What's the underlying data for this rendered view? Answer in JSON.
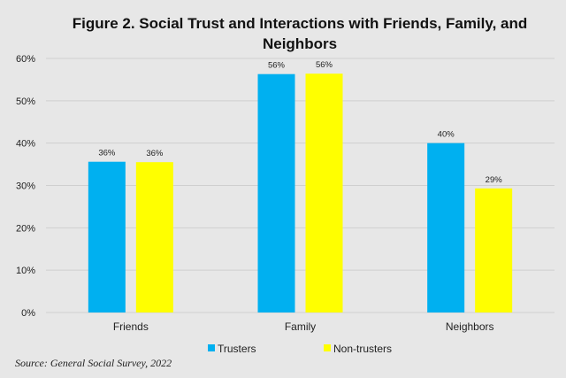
{
  "chart_data": {
    "type": "bar",
    "title_line1": "Figure 2. Social Trust and Interactions with Friends, Family, and",
    "title_line2": "Neighbors",
    "categories": [
      "Friends",
      "Family",
      "Neighbors"
    ],
    "series": [
      {
        "name": "Trusters",
        "color": "#00b0f0",
        "values": [
          35.6,
          56.3,
          40.0
        ],
        "labels": [
          "36%",
          "56%",
          "40%"
        ]
      },
      {
        "name": "Non-trusters",
        "color": "#ffff00",
        "values": [
          35.5,
          56.4,
          29.3
        ],
        "labels": [
          "36%",
          "56%",
          "29%"
        ]
      }
    ],
    "ylim": [
      0,
      60
    ],
    "yticks": [
      "0%",
      "10%",
      "20%",
      "30%",
      "40%",
      "50%",
      "60%"
    ],
    "grid": true,
    "legend": "bottom",
    "source": "Source: General Social Survey, 2022"
  }
}
